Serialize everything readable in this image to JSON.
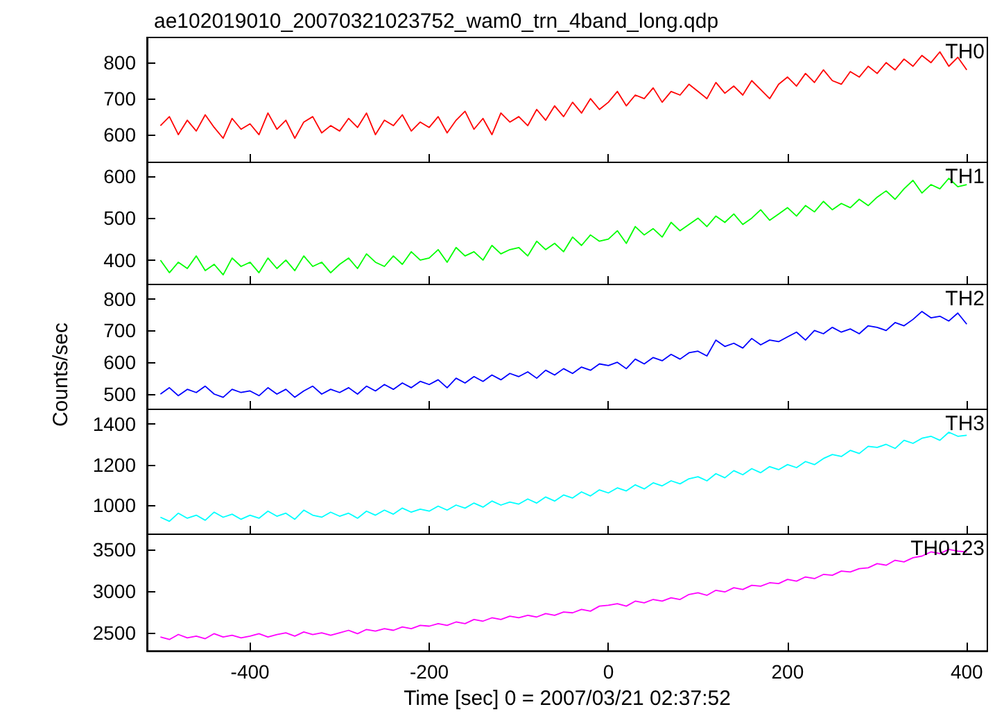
{
  "chart_data": [
    {
      "type": "line",
      "title": "ae102019010_20070321023752_wam0_trn_4band_long.qdp",
      "tick_labels": "y",
      "grid": false,
      "marker": "none",
      "xlim": [
        -515,
        423
      ],
      "xticks": [
        -400,
        -200,
        0,
        200,
        400
      ],
      "ylim": [
        523,
        870
      ],
      "yticks": [
        600,
        700,
        800
      ],
      "x": [
        -500,
        -490,
        -480,
        -470,
        -460,
        -450,
        -440,
        -430,
        -420,
        -410,
        -400,
        -390,
        -380,
        -370,
        -360,
        -350,
        -340,
        -330,
        -320,
        -310,
        -300,
        -290,
        -280,
        -270,
        -260,
        -250,
        -240,
        -230,
        -220,
        -210,
        -200,
        -190,
        -180,
        -170,
        -160,
        -150,
        -140,
        -130,
        -120,
        -110,
        -100,
        -90,
        -80,
        -70,
        -60,
        -50,
        -40,
        -30,
        -20,
        -10,
        0,
        10,
        20,
        30,
        40,
        50,
        60,
        70,
        80,
        90,
        100,
        110,
        120,
        130,
        140,
        150,
        160,
        170,
        180,
        190,
        200,
        210,
        220,
        230,
        240,
        250,
        260,
        270,
        280,
        290,
        300,
        310,
        320,
        330,
        340,
        350,
        360,
        370,
        380,
        390,
        400
      ],
      "series": [
        {
          "name": "TH0",
          "color": "#ff0000",
          "values": [
            625,
            650,
            600,
            640,
            610,
            655,
            620,
            590,
            645,
            615,
            630,
            600,
            660,
            615,
            640,
            590,
            635,
            650,
            605,
            625,
            610,
            645,
            620,
            660,
            600,
            640,
            625,
            655,
            610,
            635,
            620,
            650,
            605,
            640,
            665,
            615,
            645,
            600,
            660,
            635,
            650,
            625,
            670,
            640,
            680,
            650,
            690,
            660,
            700,
            670,
            690,
            720,
            680,
            710,
            700,
            730,
            690,
            720,
            710,
            740,
            720,
            700,
            745,
            715,
            735,
            710,
            750,
            725,
            700,
            740,
            760,
            735,
            770,
            745,
            780,
            750,
            740,
            775,
            760,
            790,
            770,
            800,
            780,
            810,
            790,
            820,
            800,
            830,
            790,
            815,
            780
          ]
        }
      ]
    },
    {
      "type": "line",
      "tick_labels": "y",
      "grid": false,
      "marker": "none",
      "xlim": [
        -515,
        423
      ],
      "xticks": [
        -400,
        -200,
        0,
        200,
        400
      ],
      "ylim": [
        342,
        633
      ],
      "yticks": [
        400,
        500,
        600
      ],
      "x": [
        -500,
        -490,
        -480,
        -470,
        -460,
        -450,
        -440,
        -430,
        -420,
        -410,
        -400,
        -390,
        -380,
        -370,
        -360,
        -350,
        -340,
        -330,
        -320,
        -310,
        -300,
        -290,
        -280,
        -270,
        -260,
        -250,
        -240,
        -230,
        -220,
        -210,
        -200,
        -190,
        -180,
        -170,
        -160,
        -150,
        -140,
        -130,
        -120,
        -110,
        -100,
        -90,
        -80,
        -70,
        -60,
        -50,
        -40,
        -30,
        -20,
        -10,
        0,
        10,
        20,
        30,
        40,
        50,
        60,
        70,
        80,
        90,
        100,
        110,
        120,
        130,
        140,
        150,
        160,
        170,
        180,
        190,
        200,
        210,
        220,
        230,
        240,
        250,
        260,
        270,
        280,
        290,
        300,
        310,
        320,
        330,
        340,
        350,
        360,
        370,
        380,
        390,
        400
      ],
      "series": [
        {
          "name": "TH1",
          "color": "#00ff00",
          "values": [
            400,
            370,
            395,
            380,
            410,
            375,
            390,
            365,
            405,
            385,
            395,
            370,
            405,
            380,
            400,
            375,
            410,
            385,
            395,
            370,
            390,
            405,
            380,
            415,
            395,
            385,
            410,
            390,
            420,
            400,
            405,
            425,
            395,
            430,
            410,
            420,
            400,
            435,
            415,
            425,
            430,
            410,
            445,
            425,
            440,
            420,
            455,
            435,
            460,
            445,
            450,
            470,
            440,
            480,
            460,
            475,
            455,
            490,
            470,
            485,
            500,
            480,
            505,
            490,
            510,
            485,
            500,
            520,
            495,
            510,
            525,
            505,
            530,
            515,
            540,
            520,
            535,
            525,
            545,
            530,
            550,
            565,
            545,
            570,
            590,
            560,
            580,
            570,
            595,
            575,
            580
          ]
        }
      ]
    },
    {
      "type": "line",
      "ylabel": "Counts/sec",
      "tick_labels": "y",
      "grid": false,
      "marker": "none",
      "xlim": [
        -515,
        423
      ],
      "xticks": [
        -400,
        -200,
        0,
        200,
        400
      ],
      "ylim": [
        452,
        845
      ],
      "yticks": [
        500,
        600,
        700,
        800
      ],
      "x": [
        -500,
        -490,
        -480,
        -470,
        -460,
        -450,
        -440,
        -430,
        -420,
        -410,
        -400,
        -390,
        -380,
        -370,
        -360,
        -350,
        -340,
        -330,
        -320,
        -310,
        -300,
        -290,
        -280,
        -270,
        -260,
        -250,
        -240,
        -230,
        -220,
        -210,
        -200,
        -190,
        -180,
        -170,
        -160,
        -150,
        -140,
        -130,
        -120,
        -110,
        -100,
        -90,
        -80,
        -70,
        -60,
        -50,
        -40,
        -30,
        -20,
        -10,
        0,
        10,
        20,
        30,
        40,
        50,
        60,
        70,
        80,
        90,
        100,
        110,
        120,
        130,
        140,
        150,
        160,
        170,
        180,
        190,
        200,
        210,
        220,
        230,
        240,
        250,
        260,
        270,
        280,
        290,
        300,
        310,
        320,
        330,
        340,
        350,
        360,
        370,
        380,
        390,
        400
      ],
      "series": [
        {
          "name": "TH2",
          "color": "#0000ff",
          "values": [
            500,
            520,
            495,
            515,
            505,
            525,
            500,
            490,
            515,
            505,
            510,
            495,
            520,
            500,
            515,
            490,
            510,
            525,
            500,
            515,
            505,
            520,
            500,
            525,
            510,
            530,
            515,
            535,
            520,
            540,
            530,
            545,
            520,
            550,
            535,
            555,
            540,
            560,
            545,
            565,
            555,
            570,
            550,
            575,
            560,
            580,
            565,
            585,
            575,
            595,
            590,
            600,
            580,
            610,
            595,
            615,
            605,
            625,
            610,
            630,
            635,
            620,
            670,
            650,
            660,
            645,
            675,
            655,
            670,
            665,
            680,
            695,
            670,
            700,
            690,
            710,
            695,
            705,
            690,
            715,
            710,
            700,
            725,
            715,
            735,
            760,
            740,
            745,
            730,
            755,
            720
          ]
        }
      ]
    },
    {
      "type": "line",
      "tick_labels": "y",
      "grid": false,
      "marker": "none",
      "xlim": [
        -515,
        423
      ],
      "xticks": [
        -400,
        -200,
        0,
        200,
        400
      ],
      "ylim": [
        856,
        1473
      ],
      "yticks": [
        1000,
        1200,
        1400
      ],
      "x": [
        -500,
        -490,
        -480,
        -470,
        -460,
        -450,
        -440,
        -430,
        -420,
        -410,
        -400,
        -390,
        -380,
        -370,
        -360,
        -350,
        -340,
        -330,
        -320,
        -310,
        -300,
        -290,
        -280,
        -270,
        -260,
        -250,
        -240,
        -230,
        -220,
        -210,
        -200,
        -190,
        -180,
        -170,
        -160,
        -150,
        -140,
        -130,
        -120,
        -110,
        -100,
        -90,
        -80,
        -70,
        -60,
        -50,
        -40,
        -30,
        -20,
        -10,
        0,
        10,
        20,
        30,
        40,
        50,
        60,
        70,
        80,
        90,
        100,
        110,
        120,
        130,
        140,
        150,
        160,
        170,
        180,
        190,
        200,
        210,
        220,
        230,
        240,
        250,
        260,
        270,
        280,
        290,
        300,
        310,
        320,
        330,
        340,
        350,
        360,
        370,
        380,
        390,
        400
      ],
      "series": [
        {
          "name": "TH3",
          "color": "#00ffff",
          "values": [
            940,
            920,
            960,
            935,
            950,
            925,
            965,
            940,
            955,
            930,
            950,
            935,
            970,
            945,
            960,
            930,
            975,
            950,
            940,
            965,
            945,
            960,
            935,
            970,
            950,
            975,
            955,
            985,
            965,
            980,
            970,
            995,
            975,
            1000,
            985,
            1010,
            990,
            1020,
            1000,
            1015,
            1005,
            1030,
            1010,
            1040,
            1020,
            1050,
            1035,
            1065,
            1045,
            1075,
            1060,
            1085,
            1070,
            1100,
            1080,
            1110,
            1095,
            1120,
            1105,
            1130,
            1140,
            1120,
            1155,
            1135,
            1170,
            1150,
            1180,
            1160,
            1190,
            1175,
            1200,
            1185,
            1215,
            1200,
            1230,
            1250,
            1240,
            1270,
            1255,
            1290,
            1285,
            1300,
            1280,
            1320,
            1305,
            1330,
            1340,
            1320,
            1360,
            1340,
            1345
          ]
        }
      ]
    },
    {
      "type": "line",
      "xlabel": "Time [sec] 0 = 2007/03/21 02:37:52",
      "grid": false,
      "marker": "none",
      "xlim": [
        -515,
        423
      ],
      "xticks": [
        -400,
        -200,
        0,
        200,
        400
      ],
      "ylim": [
        2283,
        3682
      ],
      "yticks": [
        2500,
        3000,
        3500
      ],
      "x": [
        -500,
        -490,
        -480,
        -470,
        -460,
        -450,
        -440,
        -430,
        -420,
        -410,
        -400,
        -390,
        -380,
        -370,
        -360,
        -350,
        -340,
        -330,
        -320,
        -310,
        -300,
        -290,
        -280,
        -270,
        -260,
        -250,
        -240,
        -230,
        -220,
        -210,
        -200,
        -190,
        -180,
        -170,
        -160,
        -150,
        -140,
        -130,
        -120,
        -110,
        -100,
        -90,
        -80,
        -70,
        -60,
        -50,
        -40,
        -30,
        -20,
        -10,
        0,
        10,
        20,
        30,
        40,
        50,
        60,
        70,
        80,
        90,
        100,
        110,
        120,
        130,
        140,
        150,
        160,
        170,
        180,
        190,
        200,
        210,
        220,
        230,
        240,
        250,
        260,
        270,
        280,
        290,
        300,
        310,
        320,
        330,
        340,
        350,
        360,
        370,
        380,
        390,
        400
      ],
      "series": [
        {
          "name": "TH0123",
          "color": "#ff00ff",
          "values": [
            2450,
            2420,
            2480,
            2440,
            2460,
            2430,
            2490,
            2450,
            2470,
            2440,
            2460,
            2490,
            2450,
            2480,
            2500,
            2460,
            2510,
            2480,
            2500,
            2470,
            2500,
            2530,
            2490,
            2540,
            2520,
            2550,
            2530,
            2570,
            2550,
            2590,
            2580,
            2610,
            2590,
            2630,
            2610,
            2660,
            2640,
            2680,
            2660,
            2700,
            2680,
            2710,
            2690,
            2730,
            2710,
            2750,
            2740,
            2780,
            2760,
            2820,
            2830,
            2850,
            2820,
            2880,
            2860,
            2900,
            2880,
            2920,
            2900,
            2960,
            2980,
            2950,
            3010,
            2990,
            3040,
            3020,
            3070,
            3060,
            3100,
            3090,
            3140,
            3120,
            3170,
            3150,
            3200,
            3190,
            3240,
            3230,
            3270,
            3280,
            3330,
            3310,
            3370,
            3350,
            3400,
            3420,
            3470,
            3450,
            3500,
            3480,
            3470
          ]
        }
      ]
    }
  ]
}
